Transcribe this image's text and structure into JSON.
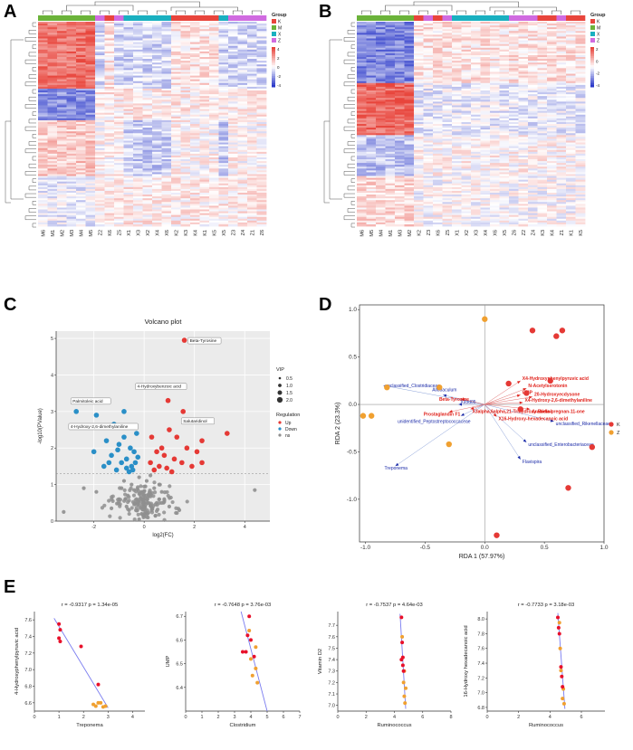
{
  "panels": {
    "A": "A",
    "B": "B",
    "C": "C",
    "D": "D",
    "E": "E"
  },
  "colors": {
    "K": "#e8453c",
    "M": "#6bb33a",
    "X": "#1ab0c0",
    "Z": "#d06be0",
    "up": "#e53935",
    "down": "#2a8fc7",
    "ns": "#8f8f8f",
    "heat_high": "#e8453c",
    "heat_mid": "#ffffff",
    "heat_low": "#2b39c9",
    "regline": "#7a7cf0",
    "arrow": "#1a2aa8",
    "rda_K": "#e53935",
    "rda_Z": "#f0a030"
  },
  "heatmapA": {
    "legend_title": "Group",
    "legend_items": [
      "K",
      "M",
      "X",
      "Z"
    ],
    "scale_ticks": [
      "4",
      "2",
      "0",
      "-2",
      "-4"
    ],
    "columns": [
      "M6",
      "M1",
      "M2",
      "M3",
      "M4",
      "M5",
      "Z2",
      "K6",
      "Z5",
      "X1",
      "X3",
      "X2",
      "X4",
      "X6",
      "K2",
      "K3",
      "K4",
      "K1",
      "K5",
      "X5",
      "Z3",
      "Z4",
      "Z1",
      "Z6"
    ],
    "col_groups": [
      "M",
      "M",
      "M",
      "M",
      "M",
      "M",
      "Z",
      "K",
      "Z",
      "X",
      "X",
      "X",
      "X",
      "X",
      "K",
      "K",
      "K",
      "K",
      "K",
      "X",
      "Z",
      "Z",
      "Z",
      "Z"
    ]
  },
  "heatmapB": {
    "legend_title": "Group",
    "legend_items": [
      "K",
      "M",
      "X",
      "Z"
    ],
    "scale_ticks": [
      "2",
      "0",
      "-2",
      "-4"
    ],
    "columns": [
      "M6",
      "M5",
      "M4",
      "M1",
      "M3",
      "M2",
      "K2",
      "Z3",
      "K6",
      "Z5",
      "X1",
      "X2",
      "X3",
      "X4",
      "X6",
      "X5",
      "Z6",
      "Z2",
      "Z4",
      "K3",
      "K4",
      "Z1",
      "K1",
      "K5"
    ],
    "col_groups": [
      "M",
      "M",
      "M",
      "M",
      "M",
      "M",
      "K",
      "Z",
      "K",
      "Z",
      "X",
      "X",
      "X",
      "X",
      "X",
      "X",
      "Z",
      "Z",
      "Z",
      "K",
      "K",
      "Z",
      "K",
      "K"
    ]
  },
  "chart_data": [
    {
      "id": "volcano",
      "type": "scatter",
      "title": "Volcano plot",
      "xlabel": "log2(FC)",
      "ylabel": "-log10(PValue)",
      "xlim": [
        -3.5,
        5
      ],
      "ylim": [
        0,
        5.2
      ],
      "xticks": [
        -2,
        0,
        2,
        4
      ],
      "yticks": [
        0,
        1,
        2,
        3,
        4,
        5
      ],
      "threshold_y": 1.3,
      "legend_vip_title": "VIP",
      "legend_vip": [
        "0.5",
        "1.0",
        "1.5",
        "2.0"
      ],
      "legend_reg_title": "Regulation",
      "legend_reg": [
        "Up",
        "Down",
        "ns"
      ],
      "labels": [
        {
          "text": "Beta-Tyrosine",
          "x": 1.6,
          "y": 4.95
        },
        {
          "text": "4-Hydroxybenzoic acid",
          "x": 0.95,
          "y": 3.3
        },
        {
          "text": "Palmitoleic acid",
          "x": -2.7,
          "y": 3.0
        },
        {
          "text": "4-Hydroxy-2,6-dimethylaniline",
          "x": -1.2,
          "y": 2.65
        },
        {
          "text": "Salutaridinol",
          "x": 1.55,
          "y": 3.0
        }
      ],
      "up": [
        [
          1.6,
          4.95
        ],
        [
          0.95,
          3.3
        ],
        [
          1.55,
          3.0
        ],
        [
          3.3,
          2.4
        ],
        [
          2.3,
          2.2
        ],
        [
          1.0,
          2.5
        ],
        [
          0.3,
          2.3
        ],
        [
          1.7,
          2.0
        ],
        [
          2.1,
          1.9
        ],
        [
          0.5,
          1.9
        ],
        [
          0.8,
          1.8
        ],
        [
          1.2,
          1.7
        ],
        [
          1.5,
          1.6
        ],
        [
          0.25,
          1.6
        ],
        [
          0.6,
          1.5
        ],
        [
          0.9,
          1.45
        ],
        [
          2.3,
          1.6
        ],
        [
          1.9,
          1.5
        ],
        [
          0.4,
          1.4
        ],
        [
          1.1,
          1.35
        ],
        [
          0.7,
          2.0
        ],
        [
          1.3,
          2.3
        ]
      ],
      "down": [
        [
          -2.7,
          3.0
        ],
        [
          -1.2,
          2.65
        ],
        [
          -0.8,
          3.0
        ],
        [
          -1.9,
          2.9
        ],
        [
          -0.3,
          2.4
        ],
        [
          -1.5,
          2.2
        ],
        [
          -1.0,
          2.1
        ],
        [
          -0.4,
          1.9
        ],
        [
          -2.0,
          1.9
        ],
        [
          -0.7,
          1.7
        ],
        [
          -1.3,
          1.8
        ],
        [
          -0.9,
          1.6
        ],
        [
          -0.5,
          1.5
        ],
        [
          -1.1,
          1.4
        ],
        [
          -0.6,
          1.35
        ],
        [
          -0.35,
          1.6
        ],
        [
          -1.6,
          1.5
        ],
        [
          -0.8,
          2.3
        ],
        [
          -0.55,
          2.0
        ],
        [
          -1.05,
          1.95
        ],
        [
          -0.45,
          1.4
        ],
        [
          -0.7,
          1.45
        ],
        [
          -1.4,
          1.6
        ],
        [
          -0.25,
          1.75
        ]
      ],
      "ns": [
        [
          -0.2,
          1.2
        ],
        [
          0.1,
          1.1
        ],
        [
          -0.5,
          1.0
        ],
        [
          0.4,
          0.9
        ],
        [
          -0.1,
          0.8
        ],
        [
          0.2,
          0.7
        ],
        [
          -0.3,
          0.6
        ],
        [
          0.5,
          0.5
        ],
        [
          -0.7,
          0.4
        ],
        [
          0.3,
          0.3
        ],
        [
          -0.1,
          0.2
        ],
        [
          0.15,
          0.1
        ],
        [
          -0.4,
          0.85
        ],
        [
          0.6,
          1.0
        ],
        [
          -0.8,
          1.1
        ],
        [
          0.8,
          0.6
        ],
        [
          -0.6,
          0.3
        ],
        [
          0.0,
          0.5
        ],
        [
          -1.0,
          0.6
        ],
        [
          1.0,
          0.4
        ],
        [
          -0.2,
          0.05
        ],
        [
          0.45,
          0.15
        ],
        [
          -2.4,
          0.9
        ],
        [
          -1.9,
          0.8
        ],
        [
          -3.2,
          0.25
        ],
        [
          4.4,
          0.85
        ],
        [
          -1.3,
          0.35
        ],
        [
          1.4,
          0.3
        ],
        [
          0.05,
          0.95
        ],
        [
          -0.25,
          0.45
        ],
        [
          0.7,
          0.8
        ],
        [
          -0.9,
          0.9
        ],
        [
          0.25,
          1.25
        ],
        [
          -0.65,
          0.7
        ]
      ]
    },
    {
      "id": "rda",
      "type": "scatter",
      "xlabel": "RDA 1 (57.97%)",
      "ylabel": "RDA 2 (23.3%)",
      "xlim": [
        -1.05,
        1.0
      ],
      "ylim": [
        -1.45,
        1.05
      ],
      "xticks": [
        -1.0,
        -0.5,
        0.0,
        0.5,
        1.0
      ],
      "yticks": [
        -1.0,
        -0.5,
        0.0,
        0.5,
        1.0
      ],
      "xticklabels": [
        "-1.0",
        "-0.5",
        "0.0",
        "0.5",
        "1.0"
      ],
      "yticklabels": [
        "-1.0",
        "-0.5",
        "0.0",
        "0.5",
        "1.0"
      ],
      "legend": [
        "K",
        "Z"
      ],
      "K_points": [
        [
          0.4,
          0.78
        ],
        [
          0.6,
          0.72
        ],
        [
          0.65,
          0.78
        ],
        [
          0.35,
          0.12
        ],
        [
          0.2,
          0.22
        ],
        [
          0.3,
          -0.05
        ],
        [
          0.9,
          -0.45
        ],
        [
          0.7,
          -0.88
        ],
        [
          0.1,
          -1.38
        ],
        [
          0.55,
          0.25
        ]
      ],
      "Z_points": [
        [
          0.0,
          0.9
        ],
        [
          -1.02,
          -0.12
        ],
        [
          -0.95,
          -0.12
        ],
        [
          -0.82,
          0.18
        ],
        [
          -0.3,
          -0.42
        ],
        [
          -0.38,
          0.18
        ]
      ],
      "arrows": [
        {
          "label": "unclassified_Clostridiaceae",
          "x": -0.85,
          "y": 0.2,
          "color": "blue"
        },
        {
          "label": "Allobaculum",
          "x": -0.35,
          "y": 0.1,
          "color": "blue"
        },
        {
          "label": "X93d05",
          "x": -0.22,
          "y": 0.0,
          "color": "blue"
        },
        {
          "label": "unidentified_Peptostreptococcaceae",
          "x": -0.2,
          "y": -0.12,
          "color": "blue"
        },
        {
          "label": "Treponema",
          "x": -0.75,
          "y": -0.65,
          "color": "blue"
        },
        {
          "label": "unclassified_Rikenellaceae",
          "x": 0.58,
          "y": -0.18,
          "color": "blue"
        },
        {
          "label": "unclassified_Enterobacteriaceae",
          "x": 0.35,
          "y": -0.4,
          "color": "blue"
        },
        {
          "label": "Flavispira",
          "x": 0.3,
          "y": -0.58,
          "color": "blue"
        },
        {
          "label": "X4-Hydroxyphenylpyruvic acid",
          "x": 0.3,
          "y": 0.25,
          "color": "red"
        },
        {
          "label": "N-Acetylserotonin",
          "x": 0.35,
          "y": 0.17,
          "color": "red"
        },
        {
          "label": "UMP",
          "x": 0.3,
          "y": 0.1,
          "color": "red"
        },
        {
          "label": "20-Hydroxyecdysone",
          "x": 0.4,
          "y": 0.08,
          "color": "red"
        },
        {
          "label": "Beta-Tyrosine",
          "x": -0.2,
          "y": 0.06,
          "color": "red"
        },
        {
          "label": "X4-Hydroxy-2,6-dimethylaniline",
          "x": 0.32,
          "y": 0.02,
          "color": "red"
        },
        {
          "label": "Arabidiol",
          "x": 0.38,
          "y": -0.05,
          "color": "red"
        },
        {
          "label": "X3alpha,6alpha,21-Trihydroxy-5beta-pregnan-11-one",
          "x": -0.12,
          "y": -0.05,
          "color": "red"
        },
        {
          "label": "Prostaglandin F1",
          "x": -0.3,
          "y": -0.08,
          "color": "red"
        },
        {
          "label": "X16-Hydroxy-hexadecanoic acid",
          "x": 0.1,
          "y": -0.13,
          "color": "red"
        }
      ]
    },
    {
      "id": "E1",
      "type": "scatter",
      "stat": "r = -0.9317   p = 1.34e-05",
      "xlabel": "Treponema",
      "ylabel": "4-Hydroxyphenylpyruvic acid",
      "xlim": [
        0,
        4.5
      ],
      "ylim": [
        6.5,
        7.7
      ],
      "xticks": [
        0,
        1,
        2,
        3,
        4
      ],
      "yticks": [
        6.6,
        6.8,
        7.0,
        7.2,
        7.4,
        7.6
      ],
      "xticklabels": [
        "0",
        "1",
        "2",
        "3",
        "4"
      ],
      "yticklabels": [
        "6.6",
        "6.8",
        "7.0",
        "7.2",
        "7.4",
        "7.6"
      ],
      "line": [
        [
          0.8,
          7.62
        ],
        [
          3.0,
          6.54
        ]
      ],
      "K": [
        [
          1.0,
          7.55
        ],
        [
          1.05,
          7.48
        ],
        [
          1.0,
          7.38
        ],
        [
          1.05,
          7.34
        ],
        [
          1.9,
          7.28
        ],
        [
          2.6,
          6.82
        ]
      ],
      "Z": [
        [
          2.4,
          6.58
        ],
        [
          2.6,
          6.6
        ],
        [
          2.8,
          6.55
        ],
        [
          2.7,
          6.6
        ],
        [
          2.5,
          6.56
        ],
        [
          2.9,
          6.56
        ]
      ]
    },
    {
      "id": "E2",
      "type": "scatter",
      "stat": "r = -0.7648   p = 3.76e-03",
      "xlabel": "Clostridium",
      "ylabel": "UMP",
      "xlim": [
        0,
        7
      ],
      "ylim": [
        6.3,
        6.72
      ],
      "xticks": [
        0,
        1,
        2,
        3,
        4,
        5,
        6,
        7
      ],
      "yticks": [
        6.4,
        6.5,
        6.6,
        6.7
      ],
      "xticklabels": [
        "0",
        "1",
        "2",
        "3",
        "4",
        "5",
        "6",
        "7"
      ],
      "yticklabels": [
        "6.4",
        "6.5",
        "6.6",
        "6.7"
      ],
      "line": [
        [
          3.4,
          6.72
        ],
        [
          5.0,
          6.3
        ]
      ],
      "K": [
        [
          3.9,
          6.7
        ],
        [
          3.8,
          6.62
        ],
        [
          3.5,
          6.55
        ],
        [
          3.7,
          6.55
        ],
        [
          4.2,
          6.53
        ],
        [
          4.0,
          6.6
        ]
      ],
      "Z": [
        [
          3.9,
          6.64
        ],
        [
          4.3,
          6.57
        ],
        [
          4.0,
          6.52
        ],
        [
          4.1,
          6.45
        ],
        [
          4.4,
          6.42
        ],
        [
          4.3,
          6.48
        ]
      ]
    },
    {
      "id": "E3",
      "type": "scatter",
      "stat": "r = -0.7537   p = 4.64e-03",
      "xlabel": "Ruminococcus",
      "ylabel": "Vitamin D2",
      "xlim": [
        0,
        8
      ],
      "ylim": [
        6.95,
        7.82
      ],
      "xticks": [
        0,
        2,
        4,
        6,
        8
      ],
      "yticks": [
        7.0,
        7.1,
        7.2,
        7.3,
        7.4,
        7.5,
        7.6,
        7.7
      ],
      "xticklabels": [
        "0",
        "2",
        "4",
        "6",
        "8"
      ],
      "yticklabels": [
        "7.0",
        "7.1",
        "7.2",
        "7.3",
        "7.4",
        "7.5",
        "7.6",
        "7.7"
      ],
      "line": [
        [
          4.4,
          7.8
        ],
        [
          4.8,
          6.97
        ]
      ],
      "K": [
        [
          4.5,
          7.77
        ],
        [
          4.55,
          7.55
        ],
        [
          4.6,
          7.42
        ],
        [
          4.5,
          7.4
        ],
        [
          4.6,
          7.35
        ],
        [
          4.65,
          7.3
        ]
      ],
      "Z": [
        [
          4.55,
          7.6
        ],
        [
          4.7,
          7.3
        ],
        [
          4.65,
          7.2
        ],
        [
          4.8,
          7.15
        ],
        [
          4.7,
          7.08
        ],
        [
          4.75,
          7.02
        ]
      ]
    },
    {
      "id": "E4",
      "type": "scatter",
      "stat": "r = -0.7733   p = 3.18e-03",
      "xlabel": "Ruminococcus",
      "ylabel": "16-Hydroxy hexadecanoic acid",
      "xlim": [
        0,
        7.5
      ],
      "ylim": [
        6.75,
        8.1
      ],
      "xticks": [
        0,
        2,
        4,
        6
      ],
      "yticks": [
        6.8,
        7.0,
        7.2,
        7.4,
        7.6,
        7.8,
        8.0
      ],
      "xticklabels": [
        "0",
        "2",
        "4",
        "6"
      ],
      "yticklabels": [
        "6.8",
        "7.0",
        "7.2",
        "7.4",
        "7.6",
        "7.8",
        "8.0"
      ],
      "line": [
        [
          4.5,
          8.08
        ],
        [
          4.95,
          6.78
        ]
      ],
      "K": [
        [
          4.5,
          8.02
        ],
        [
          4.55,
          7.88
        ],
        [
          4.6,
          7.8
        ],
        [
          4.7,
          7.35
        ],
        [
          4.75,
          7.22
        ],
        [
          4.8,
          7.08
        ]
      ],
      "Z": [
        [
          4.6,
          7.95
        ],
        [
          4.65,
          7.6
        ],
        [
          4.7,
          7.3
        ],
        [
          4.85,
          7.05
        ],
        [
          4.8,
          6.92
        ],
        [
          4.9,
          6.85
        ]
      ]
    }
  ]
}
